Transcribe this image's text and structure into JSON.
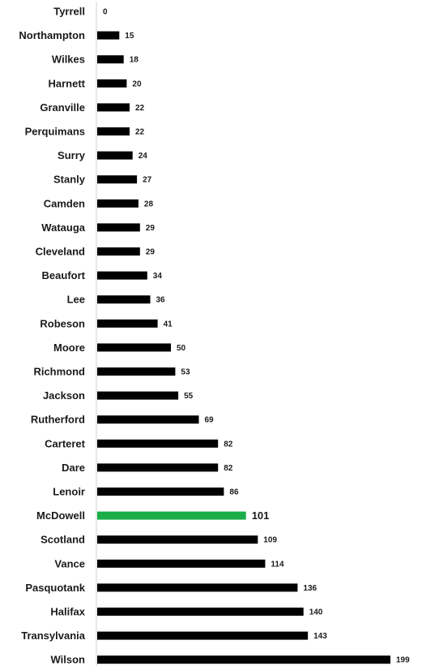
{
  "chart_data": {
    "type": "bar",
    "orientation": "horizontal",
    "title": "",
    "xlabel": "",
    "ylabel": "",
    "grid": false,
    "legend": "none",
    "xlim": [
      0,
      199
    ],
    "categories": [
      "Tyrrell",
      "Northampton",
      "Wilkes",
      "Harnett",
      "Granville",
      "Perquimans",
      "Surry",
      "Stanly",
      "Camden",
      "Watauga",
      "Cleveland",
      "Beaufort",
      "Lee",
      "Robeson",
      "Moore",
      "Richmond",
      "Jackson",
      "Rutherford",
      "Carteret",
      "Dare",
      "Lenoir",
      "McDowell",
      "Scotland",
      "Vance",
      "Pasquotank",
      "Halifax",
      "Transylvania",
      "Wilson"
    ],
    "values": [
      0,
      15,
      18,
      20,
      22,
      22,
      24,
      27,
      28,
      29,
      29,
      34,
      36,
      41,
      50,
      53,
      55,
      69,
      82,
      82,
      86,
      101,
      109,
      114,
      136,
      140,
      143,
      199
    ],
    "highlight_category": "McDowell",
    "colors": {
      "bar": "#000000",
      "highlight": "#1aad48",
      "axis": "#d0d0d0",
      "text": "#1a1a1a"
    }
  }
}
